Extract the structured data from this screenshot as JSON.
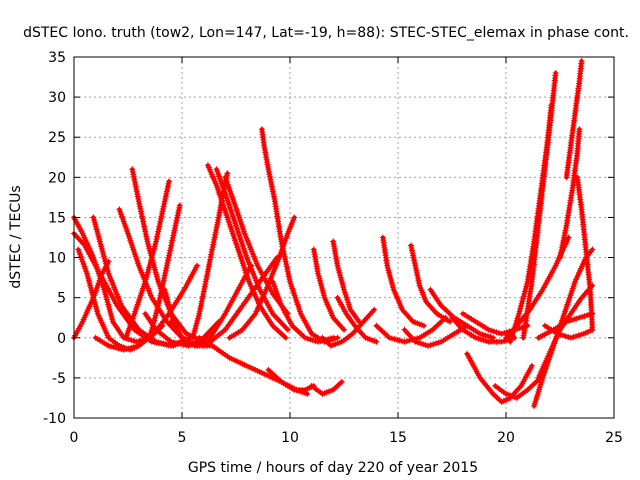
{
  "chart_data": {
    "type": "scatter",
    "title": "dSTEC Iono. truth (tow2, Lon=147, Lat=-19, h=88): STEC-STEC_elemax in phase cont.",
    "xlabel": "GPS time / hours of day 220 of year 2015",
    "ylabel": "dSTEC  / TECUs",
    "xlim": [
      0,
      25
    ],
    "ylim": [
      -10,
      35
    ],
    "xticks": [
      0,
      5,
      10,
      15,
      20,
      25
    ],
    "yticks": [
      -10,
      -5,
      0,
      5,
      10,
      15,
      20,
      25,
      30,
      35
    ],
    "xtick_labels": [
      "0",
      "5",
      "10",
      "15",
      "20",
      "25"
    ],
    "ytick_labels": [
      "-10",
      "-5",
      "0",
      "5",
      "10",
      "15",
      "20",
      "25",
      "30",
      "35"
    ],
    "grid": true,
    "marker": "plus",
    "color": "#ff0000",
    "series": [
      {
        "points": [
          [
            0,
            15
          ],
          [
            0.4,
            13
          ],
          [
            0.9,
            10
          ],
          [
            1.4,
            6
          ],
          [
            1.8,
            2
          ],
          [
            2.3,
            0
          ],
          [
            2.9,
            -0.5
          ],
          [
            3.5,
            0
          ],
          [
            4.1,
            1.5
          ]
        ]
      },
      {
        "points": [
          [
            0,
            13
          ],
          [
            0.5,
            11.5
          ],
          [
            1.2,
            8
          ],
          [
            2,
            4
          ],
          [
            2.8,
            1
          ],
          [
            3.6,
            -0.5
          ],
          [
            4.5,
            -1
          ],
          [
            5.4,
            0
          ]
        ]
      },
      {
        "points": [
          [
            0,
            0
          ],
          [
            0.4,
            2
          ],
          [
            0.9,
            5
          ],
          [
            1.3,
            8
          ],
          [
            1.6,
            9.5
          ]
        ]
      },
      {
        "points": [
          [
            0.2,
            11
          ],
          [
            0.6,
            8
          ],
          [
            1.1,
            3
          ],
          [
            1.6,
            0
          ],
          [
            2.1,
            -1
          ],
          [
            2.6,
            -1.5
          ],
          [
            3,
            -1
          ]
        ]
      },
      {
        "points": [
          [
            0.9,
            15
          ],
          [
            1.2,
            12
          ],
          [
            1.6,
            8
          ],
          [
            2.2,
            4
          ],
          [
            3,
            1
          ],
          [
            3.8,
            -0.5
          ],
          [
            4.6,
            -1
          ],
          [
            5.4,
            0
          ]
        ]
      },
      {
        "points": [
          [
            1,
            0
          ],
          [
            1.6,
            -1
          ],
          [
            2.3,
            -1.5
          ],
          [
            3,
            -1
          ],
          [
            3.7,
            0.5
          ],
          [
            4.4,
            3
          ],
          [
            5.1,
            6
          ],
          [
            5.7,
            9
          ]
        ]
      },
      {
        "points": [
          [
            2.1,
            16
          ],
          [
            2.5,
            13
          ],
          [
            3,
            9
          ],
          [
            3.6,
            5
          ],
          [
            4.3,
            2
          ],
          [
            5,
            0
          ],
          [
            5.7,
            -1
          ],
          [
            6.4,
            -1
          ]
        ]
      },
      {
        "points": [
          [
            2.7,
            21
          ],
          [
            3,
            17
          ],
          [
            3.4,
            12
          ],
          [
            3.9,
            7
          ],
          [
            4.5,
            3
          ],
          [
            5.2,
            0.5
          ],
          [
            6,
            -0.5
          ]
        ]
      },
      {
        "points": [
          [
            2.4,
            0
          ],
          [
            2.8,
            3
          ],
          [
            3.3,
            7
          ],
          [
            3.8,
            12
          ],
          [
            4.2,
            17
          ],
          [
            4.4,
            19.5
          ]
        ]
      },
      {
        "points": [
          [
            3.5,
            0
          ],
          [
            3.9,
            4
          ],
          [
            4.3,
            9
          ],
          [
            4.7,
            14
          ],
          [
            4.9,
            16.5
          ]
        ]
      },
      {
        "points": [
          [
            3.3,
            3
          ],
          [
            3.8,
            1
          ],
          [
            4.5,
            -0.5
          ],
          [
            5.3,
            -1
          ],
          [
            6,
            0
          ],
          [
            6.7,
            2
          ]
        ]
      },
      {
        "points": [
          [
            4.2,
            6
          ],
          [
            4.6,
            2
          ],
          [
            5.1,
            -0.5
          ],
          [
            5.7,
            -1
          ],
          [
            6.3,
            0
          ],
          [
            7,
            3
          ],
          [
            7.6,
            6
          ],
          [
            8.2,
            9
          ]
        ]
      },
      {
        "points": [
          [
            4.5,
            2
          ],
          [
            5,
            0
          ],
          [
            5.6,
            -1
          ],
          [
            6.3,
            -0.5
          ],
          [
            7,
            1
          ],
          [
            7.8,
            4
          ],
          [
            8.6,
            7
          ],
          [
            9.4,
            10
          ]
        ]
      },
      {
        "points": [
          [
            5.5,
            0
          ],
          [
            5.8,
            3
          ],
          [
            6.1,
            7
          ],
          [
            6.4,
            11
          ],
          [
            6.7,
            15
          ],
          [
            6.9,
            18
          ],
          [
            7.1,
            20.5
          ]
        ]
      },
      {
        "points": [
          [
            6.2,
            21.5
          ],
          [
            6.6,
            19
          ],
          [
            7.1,
            15
          ],
          [
            7.6,
            11
          ],
          [
            8.1,
            7
          ],
          [
            8.6,
            4
          ],
          [
            9.2,
            1.5
          ],
          [
            9.8,
            0
          ]
        ]
      },
      {
        "points": [
          [
            6.6,
            21
          ],
          [
            7,
            18
          ],
          [
            7.5,
            14
          ],
          [
            8,
            10
          ],
          [
            8.6,
            6
          ],
          [
            9.2,
            3
          ],
          [
            9.9,
            1
          ]
        ]
      },
      {
        "points": [
          [
            7,
            20
          ],
          [
            7.4,
            17
          ],
          [
            7.9,
            13
          ],
          [
            8.5,
            9
          ],
          [
            9.2,
            5.5
          ],
          [
            9.9,
            3
          ]
        ]
      },
      {
        "points": [
          [
            7.2,
            0
          ],
          [
            7.8,
            1
          ],
          [
            8.4,
            3
          ],
          [
            8.9,
            6
          ],
          [
            9.5,
            10
          ],
          [
            9.9,
            13
          ],
          [
            10.2,
            15
          ]
        ]
      },
      {
        "points": [
          [
            8.7,
            26
          ],
          [
            8.8,
            24
          ],
          [
            9,
            21
          ],
          [
            9.3,
            17
          ],
          [
            9.6,
            12
          ],
          [
            10,
            7
          ],
          [
            10.5,
            3
          ],
          [
            11,
            0.5
          ],
          [
            11.6,
            -0.5
          ],
          [
            12.2,
            0
          ]
        ]
      },
      {
        "points": [
          [
            5.8,
            0
          ],
          [
            6.4,
            -1
          ],
          [
            7.2,
            -2.5
          ],
          [
            8,
            -3.5
          ],
          [
            8.8,
            -4.5
          ],
          [
            9.6,
            -5.5
          ],
          [
            10.3,
            -6.5
          ],
          [
            10.8,
            -7
          ]
        ]
      },
      {
        "points": [
          [
            9,
            -4
          ],
          [
            9.6,
            -5.5
          ],
          [
            10.2,
            -6.5
          ],
          [
            10.7,
            -6.5
          ],
          [
            11.1,
            -6
          ]
        ]
      },
      {
        "points": [
          [
            9.2,
            7
          ],
          [
            9.6,
            4
          ],
          [
            10.1,
            1.5
          ],
          [
            10.7,
            0
          ],
          [
            11.3,
            -0.5
          ],
          [
            12,
            0
          ]
        ]
      },
      {
        "points": [
          [
            11,
            -6
          ],
          [
            11.5,
            -7
          ],
          [
            12,
            -6.5
          ],
          [
            12.4,
            -5.5
          ]
        ]
      },
      {
        "points": [
          [
            11.1,
            11
          ],
          [
            11.3,
            8
          ],
          [
            11.6,
            5
          ],
          [
            12,
            2.5
          ],
          [
            12.5,
            1
          ]
        ]
      },
      {
        "points": [
          [
            12,
            12
          ],
          [
            12.2,
            9
          ],
          [
            12.5,
            6
          ],
          [
            12.8,
            3.5
          ],
          [
            13.2,
            2
          ]
        ]
      },
      {
        "points": [
          [
            11.5,
            0
          ],
          [
            11.9,
            -1
          ],
          [
            12.4,
            -0.5
          ],
          [
            12.9,
            0.5
          ],
          [
            13.4,
            2
          ],
          [
            13.9,
            3.5
          ]
        ]
      },
      {
        "points": [
          [
            12.2,
            5
          ],
          [
            12.6,
            3
          ],
          [
            13,
            1.5
          ],
          [
            13.5,
            0
          ],
          [
            14,
            -0.5
          ]
        ]
      },
      {
        "points": [
          [
            14.3,
            12.5
          ],
          [
            14.5,
            9
          ],
          [
            14.8,
            6
          ],
          [
            15.2,
            3.5
          ],
          [
            15.7,
            2
          ],
          [
            16.2,
            1.5
          ]
        ]
      },
      {
        "points": [
          [
            14,
            1.5
          ],
          [
            14.6,
            0
          ],
          [
            15.3,
            -0.5
          ],
          [
            16,
            0
          ],
          [
            16.6,
            1
          ],
          [
            17.2,
            2.5
          ]
        ]
      },
      {
        "points": [
          [
            15.3,
            1
          ],
          [
            15.8,
            -0.5
          ],
          [
            16.4,
            -1
          ],
          [
            17,
            -0.5
          ],
          [
            17.6,
            0.5
          ],
          [
            18.2,
            1.5
          ]
        ]
      },
      {
        "points": [
          [
            15.6,
            11.5
          ],
          [
            15.8,
            9
          ],
          [
            16,
            6.5
          ],
          [
            16.3,
            4.5
          ],
          [
            16.8,
            3
          ],
          [
            17.4,
            2
          ]
        ]
      },
      {
        "points": [
          [
            16.5,
            6
          ],
          [
            17,
            4
          ],
          [
            17.6,
            2.5
          ],
          [
            18.2,
            1.5
          ],
          [
            18.8,
            0.5
          ],
          [
            19.4,
            0
          ]
        ]
      },
      {
        "points": [
          [
            17.5,
            2.5
          ],
          [
            18,
            1
          ],
          [
            18.6,
            0
          ],
          [
            19.2,
            -0.5
          ],
          [
            19.8,
            -0.5
          ],
          [
            20.4,
            0
          ]
        ]
      },
      {
        "points": [
          [
            18,
            3
          ],
          [
            18.6,
            2
          ],
          [
            19.2,
            1
          ],
          [
            19.8,
            0.5
          ],
          [
            20.4,
            1
          ],
          [
            21,
            1.5
          ]
        ]
      },
      {
        "points": [
          [
            19.5,
            -6
          ],
          [
            20,
            -7
          ],
          [
            20.5,
            -7.5
          ],
          [
            21,
            -6.5
          ],
          [
            21.6,
            -5
          ]
        ]
      },
      {
        "points": [
          [
            18.2,
            -2
          ],
          [
            18.8,
            -5
          ],
          [
            19.4,
            -7
          ],
          [
            19.8,
            -8
          ],
          [
            20.2,
            -7.5
          ],
          [
            20.7,
            -6
          ],
          [
            21.2,
            -3.5
          ]
        ]
      },
      {
        "points": [
          [
            20.2,
            -0.5
          ],
          [
            20.6,
            3
          ],
          [
            21,
            7
          ],
          [
            21.3,
            12
          ],
          [
            21.6,
            18
          ],
          [
            21.9,
            24
          ],
          [
            22.1,
            29
          ]
        ]
      },
      {
        "points": [
          [
            20.8,
            0
          ],
          [
            21.2,
            7
          ],
          [
            21.5,
            14
          ],
          [
            21.8,
            21
          ],
          [
            22.1,
            28
          ],
          [
            22.3,
            33
          ]
        ]
      },
      {
        "points": [
          [
            20,
            0
          ],
          [
            20.5,
            1.5
          ],
          [
            21.1,
            3.5
          ],
          [
            21.7,
            6
          ],
          [
            22.3,
            9
          ],
          [
            22.9,
            12.5
          ]
        ]
      },
      {
        "points": [
          [
            21.3,
            -8.5
          ],
          [
            21.7,
            -5
          ],
          [
            22.2,
            -1
          ],
          [
            22.7,
            3
          ],
          [
            23.2,
            7
          ],
          [
            23.7,
            10
          ],
          [
            24,
            11
          ]
        ]
      },
      {
        "points": [
          [
            21.5,
            -5
          ],
          [
            22,
            -2
          ],
          [
            22.5,
            1
          ],
          [
            23,
            3
          ],
          [
            23.5,
            5
          ],
          [
            24,
            6.5
          ]
        ]
      },
      {
        "points": [
          [
            22.8,
            20
          ],
          [
            23,
            24
          ],
          [
            23.2,
            28
          ],
          [
            23.4,
            32
          ],
          [
            23.5,
            34.5
          ]
        ]
      },
      {
        "points": [
          [
            22.5,
            10
          ],
          [
            22.8,
            14
          ],
          [
            23.1,
            19
          ],
          [
            23.3,
            23
          ],
          [
            23.4,
            26
          ]
        ]
      },
      {
        "points": [
          [
            23.3,
            20
          ],
          [
            23.5,
            16
          ],
          [
            23.7,
            11
          ],
          [
            23.9,
            6
          ],
          [
            24,
            1
          ]
        ]
      },
      {
        "points": [
          [
            21.5,
            0
          ],
          [
            22.2,
            1
          ],
          [
            22.8,
            2
          ],
          [
            23.4,
            2.5
          ],
          [
            24,
            3
          ]
        ]
      },
      {
        "points": [
          [
            21.8,
            1.5
          ],
          [
            22.4,
            0.5
          ],
          [
            23,
            0
          ],
          [
            23.6,
            0.5
          ],
          [
            24,
            1
          ]
        ]
      }
    ]
  }
}
